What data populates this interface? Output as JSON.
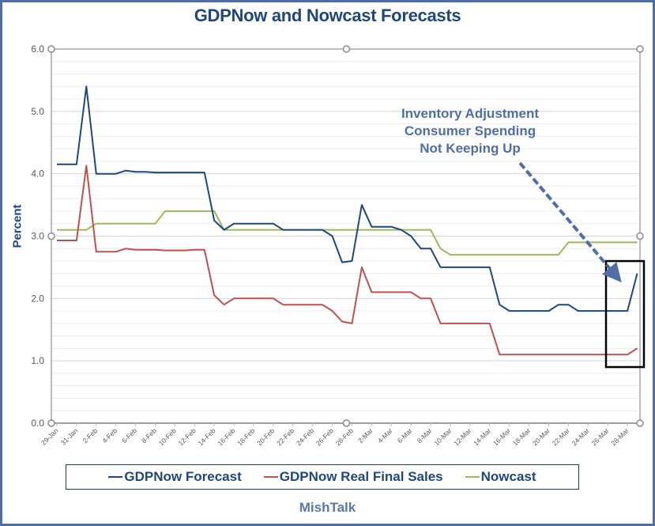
{
  "chart_data": {
    "type": "line",
    "title": "GDPNow and Nowcast Forecasts",
    "xlabel": "",
    "ylabel": "Percent",
    "ylim": [
      0,
      6
    ],
    "yticks": [
      "0.0",
      "1.0",
      "2.0",
      "3.0",
      "4.0",
      "5.0",
      "6.0"
    ],
    "minor_grid_step": 0.2,
    "grid": true,
    "legend_position": "bottom",
    "x": [
      "29-Jan",
      "30-Jan",
      "31-Jan",
      "1-Feb",
      "2-Feb",
      "3-Feb",
      "4-Feb",
      "5-Feb",
      "6-Feb",
      "7-Feb",
      "8-Feb",
      "9-Feb",
      "10-Feb",
      "11-Feb",
      "12-Feb",
      "13-Feb",
      "14-Feb",
      "15-Feb",
      "16-Feb",
      "17-Feb",
      "18-Feb",
      "19-Feb",
      "20-Feb",
      "21-Feb",
      "22-Feb",
      "23-Feb",
      "24-Feb",
      "25-Feb",
      "26-Feb",
      "27-Feb",
      "28-Feb",
      "1-Mar",
      "2-Mar",
      "3-Mar",
      "4-Mar",
      "5-Mar",
      "6-Mar",
      "7-Mar",
      "8-Mar",
      "9-Mar",
      "10-Mar",
      "11-Mar",
      "12-Mar",
      "13-Mar",
      "14-Mar",
      "15-Mar",
      "16-Mar",
      "17-Mar",
      "18-Mar",
      "19-Mar",
      "20-Mar",
      "21-Mar",
      "22-Mar",
      "23-Mar",
      "24-Mar",
      "25-Mar",
      "26-Mar",
      "27-Mar",
      "28-Mar",
      "29-Mar"
    ],
    "xtick_labels": [
      "29-Jan",
      "31-Jan",
      "2-Feb",
      "4-Feb",
      "6-Feb",
      "8-Feb",
      "10-Feb",
      "12-Feb",
      "14-Feb",
      "16-Feb",
      "18-Feb",
      "20-Feb",
      "22-Feb",
      "24-Feb",
      "26-Feb",
      "28-Feb",
      "2-Mar",
      "4-Mar",
      "6-Mar",
      "8-Mar",
      "10-Mar",
      "12-Mar",
      "14-Mar",
      "16-Mar",
      "18-Mar",
      "20-Mar",
      "22-Mar",
      "24-Mar",
      "26-Mar",
      "28-Mar"
    ],
    "series": [
      {
        "name": "GDPNow Forecast",
        "color": "#1f477b",
        "values": [
          4.15,
          4.15,
          4.15,
          5.4,
          4.0,
          4.0,
          4.0,
          4.05,
          4.03,
          4.03,
          4.02,
          4.02,
          4.02,
          4.02,
          4.02,
          4.02,
          3.25,
          3.1,
          3.2,
          3.2,
          3.2,
          3.2,
          3.2,
          3.1,
          3.1,
          3.1,
          3.1,
          3.1,
          3.0,
          2.58,
          2.6,
          3.5,
          3.15,
          3.15,
          3.15,
          3.1,
          3.0,
          2.8,
          2.8,
          2.5,
          2.5,
          2.5,
          2.5,
          2.5,
          2.5,
          1.9,
          1.8,
          1.8,
          1.8,
          1.8,
          1.8,
          1.9,
          1.9,
          1.8,
          1.8,
          1.8,
          1.8,
          1.8,
          1.8,
          2.4
        ]
      },
      {
        "name": "GDPNow Real Final Sales",
        "color": "#c0504d",
        "values": [
          2.93,
          2.93,
          2.93,
          4.13,
          2.75,
          2.75,
          2.75,
          2.8,
          2.78,
          2.78,
          2.78,
          2.77,
          2.77,
          2.77,
          2.78,
          2.78,
          2.05,
          1.9,
          2.0,
          2.0,
          2.0,
          2.0,
          2.0,
          1.9,
          1.9,
          1.9,
          1.9,
          1.9,
          1.8,
          1.63,
          1.6,
          2.5,
          2.1,
          2.1,
          2.1,
          2.1,
          2.1,
          2.0,
          2.0,
          1.6,
          1.6,
          1.6,
          1.6,
          1.6,
          1.6,
          1.1,
          1.1,
          1.1,
          1.1,
          1.1,
          1.1,
          1.1,
          1.1,
          1.1,
          1.1,
          1.1,
          1.1,
          1.1,
          1.1,
          1.2
        ]
      },
      {
        "name": "Nowcast",
        "color": "#9bbb59",
        "values": [
          3.1,
          3.1,
          3.1,
          3.1,
          3.2,
          3.2,
          3.2,
          3.2,
          3.2,
          3.2,
          3.2,
          3.4,
          3.4,
          3.4,
          3.4,
          3.4,
          3.4,
          3.1,
          3.1,
          3.1,
          3.1,
          3.1,
          3.1,
          3.1,
          3.1,
          3.1,
          3.1,
          3.1,
          3.1,
          3.1,
          3.1,
          3.1,
          3.1,
          3.1,
          3.1,
          3.1,
          3.1,
          3.1,
          3.1,
          2.8,
          2.7,
          2.7,
          2.7,
          2.7,
          2.7,
          2.7,
          2.7,
          2.7,
          2.7,
          2.7,
          2.7,
          2.7,
          2.9,
          2.9,
          2.9,
          2.9,
          2.9,
          2.9,
          2.9,
          2.9
        ]
      }
    ],
    "annotations": [
      {
        "lines": [
          "Inventory Adjustment",
          "Consumer Spending",
          "Not Keeping Up"
        ],
        "color": "#4f6ea8",
        "points_to": "28-Mar"
      }
    ],
    "highlight_box": {
      "from": "27-Mar",
      "to": "29-Mar",
      "y_range": [
        0.9,
        2.6
      ]
    }
  },
  "source": "MishTalk",
  "frame_color": "#4f6ea8"
}
